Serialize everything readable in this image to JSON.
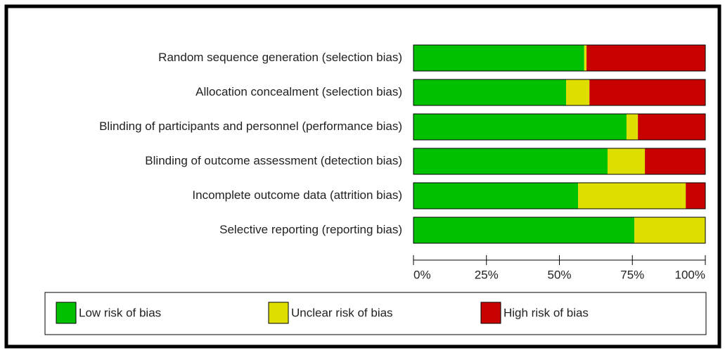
{
  "chart_data": {
    "type": "stacked-bar-horizontal",
    "categories": [
      "Random sequence generation (selection bias)",
      "Allocation concealment (selection bias)",
      "Blinding of participants and personnel (performance bias)",
      "Blinding of outcome assessment (detection bias)",
      "Incomplete outcome data (attrition bias)",
      "Selective reporting (reporting bias)"
    ],
    "series": [
      {
        "name": "Low risk of bias",
        "color": "#00c000",
        "values": [
          58.5,
          52.3,
          73.0,
          66.5,
          56.4,
          75.7
        ]
      },
      {
        "name": "Unclear risk of bias",
        "color": "#dede00",
        "values": [
          0.8,
          8.0,
          3.9,
          12.8,
          36.9,
          24.3
        ]
      },
      {
        "name": "High risk of bias",
        "color": "#c80000",
        "values": [
          40.7,
          39.7,
          23.1,
          20.7,
          6.7,
          0
        ]
      }
    ],
    "xlim": [
      0,
      100
    ],
    "xticks": [
      {
        "value": 0,
        "label": "0%"
      },
      {
        "value": 25,
        "label": "25%"
      },
      {
        "value": 50,
        "label": "50%"
      },
      {
        "value": 75,
        "label": "75%"
      },
      {
        "value": 100,
        "label": "100%"
      }
    ],
    "legend": "bottom"
  }
}
